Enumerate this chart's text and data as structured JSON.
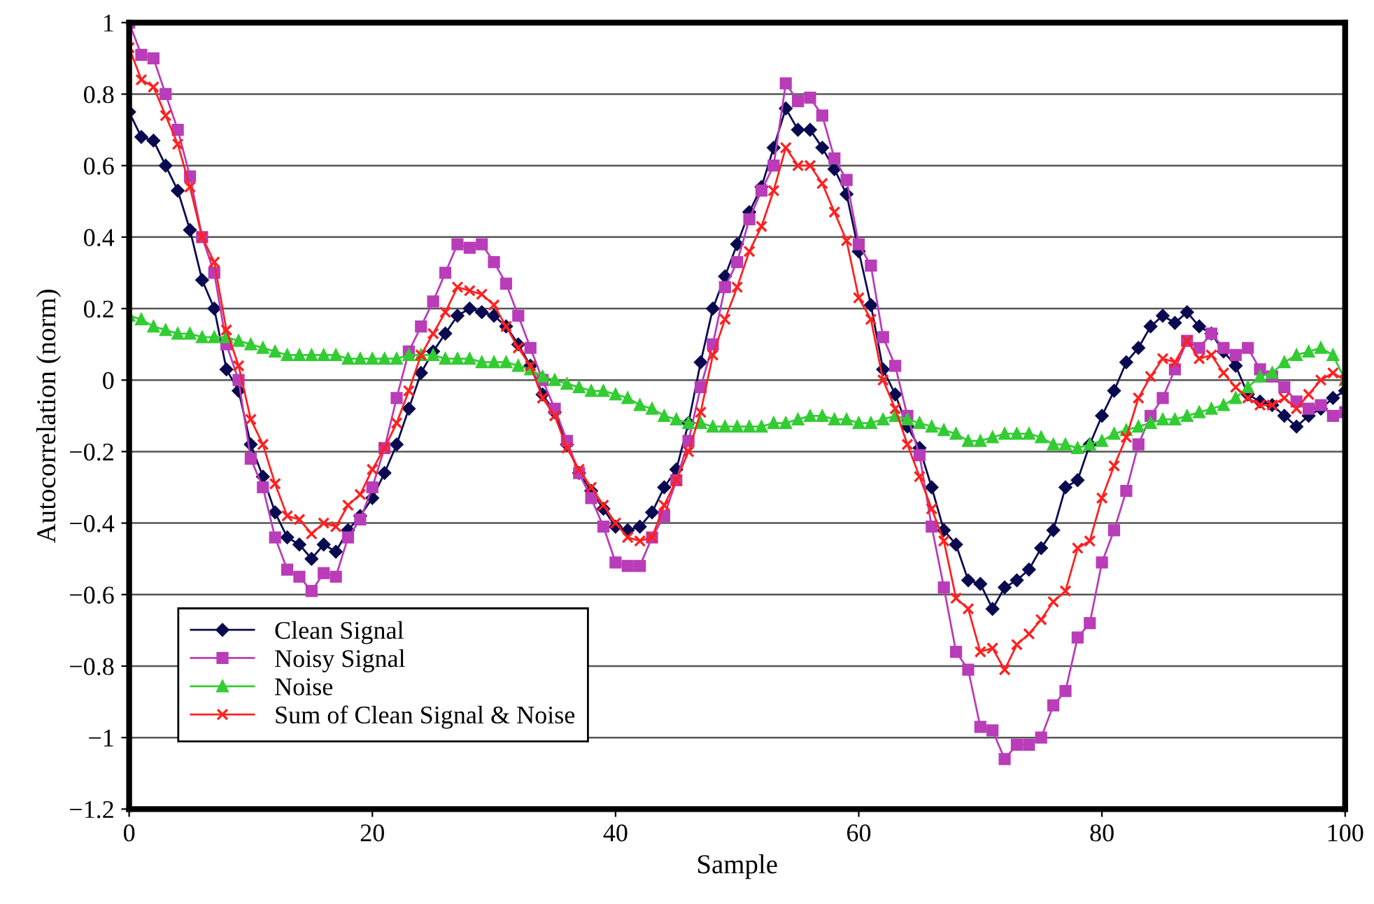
{
  "chart_data": {
    "type": "line",
    "xlabel": "Sample",
    "ylabel": "Autocorrelation (norm)",
    "x": [
      0,
      1,
      2,
      3,
      4,
      5,
      6,
      7,
      8,
      9,
      10,
      11,
      12,
      13,
      14,
      15,
      16,
      17,
      18,
      19,
      20,
      21,
      22,
      23,
      24,
      25,
      26,
      27,
      28,
      29,
      30,
      31,
      32,
      33,
      34,
      35,
      36,
      37,
      38,
      39,
      40,
      41,
      42,
      43,
      44,
      45,
      46,
      47,
      48,
      49,
      50,
      51,
      52,
      53,
      54,
      55,
      56,
      57,
      58,
      59,
      60,
      61,
      62,
      63,
      64,
      65,
      66,
      67,
      68,
      69,
      70,
      71,
      72,
      73,
      74,
      75,
      76,
      77,
      78,
      79,
      80,
      81,
      82,
      83,
      84,
      85,
      86,
      87,
      88,
      89,
      90,
      91,
      92,
      93,
      94,
      95,
      96,
      97,
      98,
      99,
      100
    ],
    "series": [
      {
        "name": "Clean Signal",
        "color": "#0a0a50",
        "marker": "diamond",
        "values": [
          0.75,
          0.68,
          0.67,
          0.6,
          0.53,
          0.42,
          0.28,
          0.2,
          0.03,
          -0.03,
          -0.18,
          -0.27,
          -0.37,
          -0.44,
          -0.46,
          -0.5,
          -0.46,
          -0.48,
          -0.42,
          -0.38,
          -0.33,
          -0.26,
          -0.18,
          -0.08,
          0.02,
          0.08,
          0.13,
          0.18,
          0.2,
          0.19,
          0.18,
          0.15,
          0.1,
          0.04,
          -0.04,
          -0.09,
          -0.18,
          -0.26,
          -0.31,
          -0.36,
          -0.41,
          -0.42,
          -0.41,
          -0.37,
          -0.3,
          -0.25,
          -0.12,
          0.05,
          0.2,
          0.29,
          0.38,
          0.47,
          0.54,
          0.65,
          0.76,
          0.7,
          0.7,
          0.65,
          0.59,
          0.52,
          0.36,
          0.21,
          0.03,
          -0.04,
          -0.13,
          -0.19,
          -0.3,
          -0.42,
          -0.46,
          -0.56,
          -0.57,
          -0.64,
          -0.58,
          -0.56,
          -0.53,
          -0.47,
          -0.42,
          -0.3,
          -0.28,
          -0.18,
          -0.1,
          -0.03,
          0.05,
          0.09,
          0.15,
          0.18,
          0.16,
          0.19,
          0.15,
          0.13,
          0.08,
          0.04,
          -0.04,
          -0.06,
          -0.07,
          -0.1,
          -0.13,
          -0.1,
          -0.08,
          -0.05,
          -0.03
        ]
      },
      {
        "name": "Noisy Signal",
        "color": "#b93cb9",
        "marker": "square",
        "values": [
          1.0,
          0.91,
          0.9,
          0.8,
          0.7,
          0.57,
          0.4,
          0.3,
          0.1,
          0.0,
          -0.22,
          -0.3,
          -0.44,
          -0.53,
          -0.55,
          -0.59,
          -0.54,
          -0.55,
          -0.44,
          -0.39,
          -0.3,
          -0.19,
          -0.05,
          0.08,
          0.15,
          0.22,
          0.3,
          0.38,
          0.37,
          0.38,
          0.33,
          0.27,
          0.18,
          0.09,
          0.0,
          -0.08,
          -0.17,
          -0.26,
          -0.33,
          -0.41,
          -0.51,
          -0.52,
          -0.52,
          -0.44,
          -0.38,
          -0.28,
          -0.17,
          -0.02,
          0.1,
          0.26,
          0.33,
          0.45,
          0.53,
          0.6,
          0.83,
          0.78,
          0.79,
          0.74,
          0.62,
          0.56,
          0.38,
          0.32,
          0.12,
          0.04,
          -0.1,
          -0.21,
          -0.41,
          -0.58,
          -0.76,
          -0.81,
          -0.97,
          -0.98,
          -1.06,
          -1.02,
          -1.02,
          -1.0,
          -0.91,
          -0.87,
          -0.72,
          -0.68,
          -0.51,
          -0.42,
          -0.31,
          -0.18,
          -0.1,
          -0.05,
          0.03,
          0.11,
          0.09,
          0.13,
          0.09,
          0.07,
          0.09,
          0.03,
          0.01,
          -0.02,
          -0.06,
          -0.08,
          -0.07,
          -0.1,
          -0.09
        ]
      },
      {
        "name": "Noise",
        "color": "#33cc33",
        "marker": "triangle",
        "values": [
          0.18,
          0.17,
          0.15,
          0.14,
          0.13,
          0.13,
          0.12,
          0.12,
          0.12,
          0.11,
          0.1,
          0.09,
          0.08,
          0.07,
          0.07,
          0.07,
          0.07,
          0.07,
          0.06,
          0.06,
          0.06,
          0.06,
          0.06,
          0.07,
          0.07,
          0.07,
          0.06,
          0.06,
          0.06,
          0.05,
          0.05,
          0.05,
          0.04,
          0.03,
          0.01,
          0.0,
          -0.01,
          -0.02,
          -0.03,
          -0.03,
          -0.04,
          -0.05,
          -0.07,
          -0.08,
          -0.1,
          -0.11,
          -0.12,
          -0.12,
          -0.13,
          -0.13,
          -0.13,
          -0.13,
          -0.13,
          -0.12,
          -0.12,
          -0.11,
          -0.1,
          -0.1,
          -0.11,
          -0.11,
          -0.12,
          -0.12,
          -0.11,
          -0.1,
          -0.11,
          -0.12,
          -0.13,
          -0.14,
          -0.15,
          -0.17,
          -0.17,
          -0.16,
          -0.15,
          -0.15,
          -0.15,
          -0.16,
          -0.18,
          -0.18,
          -0.19,
          -0.18,
          -0.17,
          -0.15,
          -0.14,
          -0.13,
          -0.12,
          -0.11,
          -0.11,
          -0.1,
          -0.09,
          -0.08,
          -0.07,
          -0.05,
          -0.02,
          0.01,
          0.02,
          0.05,
          0.07,
          0.08,
          0.09,
          0.07,
          0.0
        ]
      },
      {
        "name": "Sum of Clean Signal & Noise",
        "color": "#ff2020",
        "marker": "cross",
        "values": [
          0.93,
          0.84,
          0.82,
          0.74,
          0.66,
          0.54,
          0.4,
          0.33,
          0.14,
          0.04,
          -0.11,
          -0.18,
          -0.29,
          -0.38,
          -0.39,
          -0.43,
          -0.4,
          -0.41,
          -0.35,
          -0.32,
          -0.25,
          -0.19,
          -0.12,
          -0.03,
          0.07,
          0.13,
          0.19,
          0.26,
          0.25,
          0.24,
          0.21,
          0.15,
          0.09,
          0.04,
          -0.05,
          -0.1,
          -0.19,
          -0.25,
          -0.3,
          -0.35,
          -0.4,
          -0.44,
          -0.45,
          -0.44,
          -0.35,
          -0.28,
          -0.2,
          -0.09,
          0.07,
          0.17,
          0.26,
          0.36,
          0.43,
          0.53,
          0.65,
          0.6,
          0.6,
          0.55,
          0.47,
          0.39,
          0.23,
          0.17,
          0.0,
          -0.08,
          -0.18,
          -0.27,
          -0.36,
          -0.45,
          -0.61,
          -0.64,
          -0.76,
          -0.75,
          -0.81,
          -0.74,
          -0.71,
          -0.67,
          -0.62,
          -0.59,
          -0.47,
          -0.45,
          -0.33,
          -0.24,
          -0.16,
          -0.05,
          0.01,
          0.06,
          0.05,
          0.11,
          0.06,
          0.07,
          0.02,
          -0.02,
          -0.05,
          -0.07,
          -0.07,
          -0.05,
          -0.08,
          -0.04,
          0.0,
          0.02,
          0.0
        ]
      }
    ],
    "xlim": [
      0,
      100
    ],
    "xticks": [
      0,
      20,
      40,
      60,
      80,
      100
    ],
    "ylim": [
      -1.2,
      1
    ],
    "yticks": [
      {
        "value": -1.2,
        "label": "−1.2"
      },
      {
        "value": -1,
        "label": "−1"
      },
      {
        "value": -0.8,
        "label": "−0.8"
      },
      {
        "value": -0.6,
        "label": "−0.6"
      },
      {
        "value": -0.4,
        "label": "−0.4"
      },
      {
        "value": -0.2,
        "label": "−0.2"
      },
      0,
      0.2,
      0.4,
      0.6,
      0.8,
      1
    ],
    "grid": "y",
    "legend": "bottom left",
    "line_style": "solid"
  }
}
